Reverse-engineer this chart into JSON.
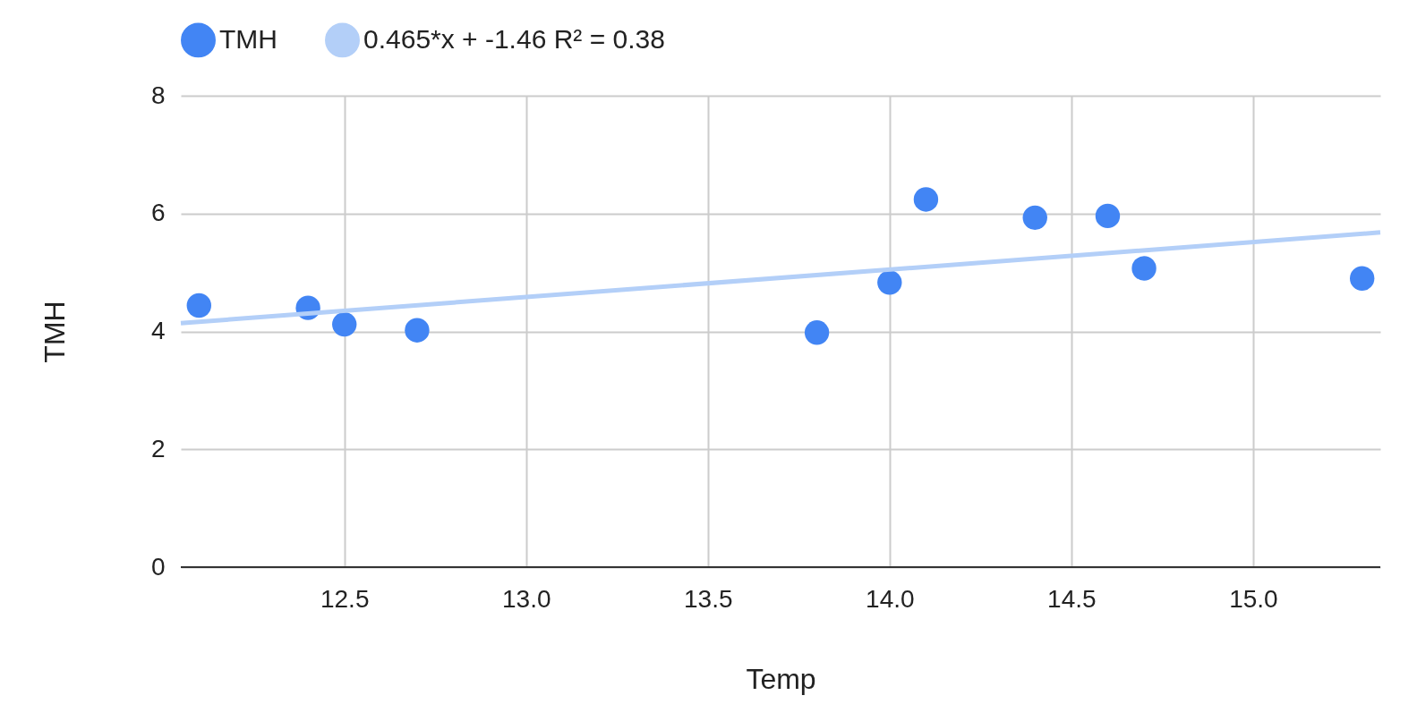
{
  "chart_data": {
    "type": "scatter",
    "xlabel": "Temp",
    "ylabel": "TMH",
    "xlim": [
      12.05,
      15.35
    ],
    "xticks": [
      12.5,
      {
        "value": 13,
        "label": "13.0"
      },
      13.5,
      {
        "value": 14,
        "label": "14.0"
      },
      14.5,
      {
        "value": 15,
        "label": "15.0"
      }
    ],
    "ylim": [
      0,
      8
    ],
    "yticks": [
      0,
      2,
      4,
      6,
      8
    ],
    "grid": true,
    "legend": "top",
    "series": [
      {
        "name": "TMH",
        "marker": "circle",
        "color": "#4285f4",
        "x": [
          12.1,
          12.4,
          12.5,
          12.7,
          13.8,
          14.0,
          14.1,
          14.4,
          14.6,
          14.7,
          15.3
        ],
        "values": [
          4.44,
          4.4,
          4.12,
          4.02,
          3.98,
          4.83,
          6.24,
          5.93,
          5.96,
          5.07,
          4.9
        ]
      },
      {
        "name": "0.465*x + -1.46 R² = 0.38",
        "type": "line",
        "line_style": "solid",
        "color": "#b3cff8",
        "x": [
          12.05,
          15.35
        ],
        "values": [
          4.14,
          5.68
        ]
      }
    ]
  }
}
